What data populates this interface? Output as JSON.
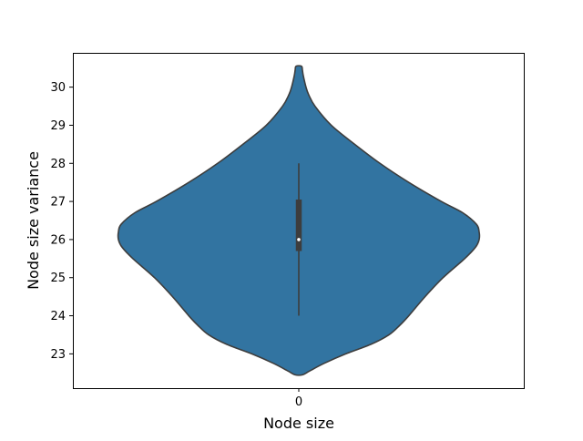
{
  "chart_data": {
    "type": "violin",
    "title": "",
    "xlabel": "Node size",
    "ylabel": "Node size variance",
    "categories": [
      "0"
    ],
    "ylim": [
      22.1,
      30.9
    ],
    "yticks": [
      23,
      24,
      25,
      26,
      27,
      28,
      29,
      30
    ],
    "grid": false,
    "legend": "none",
    "colors": {
      "fill": "#3274a1",
      "edge": "#3d3d3d",
      "box": "#3d3d3d",
      "median": "#ffffff"
    },
    "violins": [
      {
        "category": "0",
        "range": [
          22.45,
          30.55
        ],
        "density_profile": [
          [
            22.45,
            0.02
          ],
          [
            22.55,
            0.06
          ],
          [
            22.75,
            0.14
          ],
          [
            23.0,
            0.26
          ],
          [
            23.25,
            0.4
          ],
          [
            23.5,
            0.5
          ],
          [
            23.75,
            0.56
          ],
          [
            24.0,
            0.61
          ],
          [
            24.5,
            0.7
          ],
          [
            25.0,
            0.8
          ],
          [
            25.5,
            0.92
          ],
          [
            25.8,
            0.98
          ],
          [
            26.0,
            1.0
          ],
          [
            26.2,
            1.0
          ],
          [
            26.4,
            0.985
          ],
          [
            26.7,
            0.91
          ],
          [
            27.0,
            0.79
          ],
          [
            27.5,
            0.61
          ],
          [
            28.0,
            0.45
          ],
          [
            28.5,
            0.31
          ],
          [
            29.0,
            0.18
          ],
          [
            29.5,
            0.09
          ],
          [
            29.8,
            0.055
          ],
          [
            30.0,
            0.04
          ],
          [
            30.3,
            0.025
          ],
          [
            30.45,
            0.02
          ],
          [
            30.55,
            0.015
          ]
        ],
        "whisker": [
          24,
          28
        ],
        "quartiles": [
          25.7,
          27.05
        ],
        "median": 26
      }
    ]
  }
}
